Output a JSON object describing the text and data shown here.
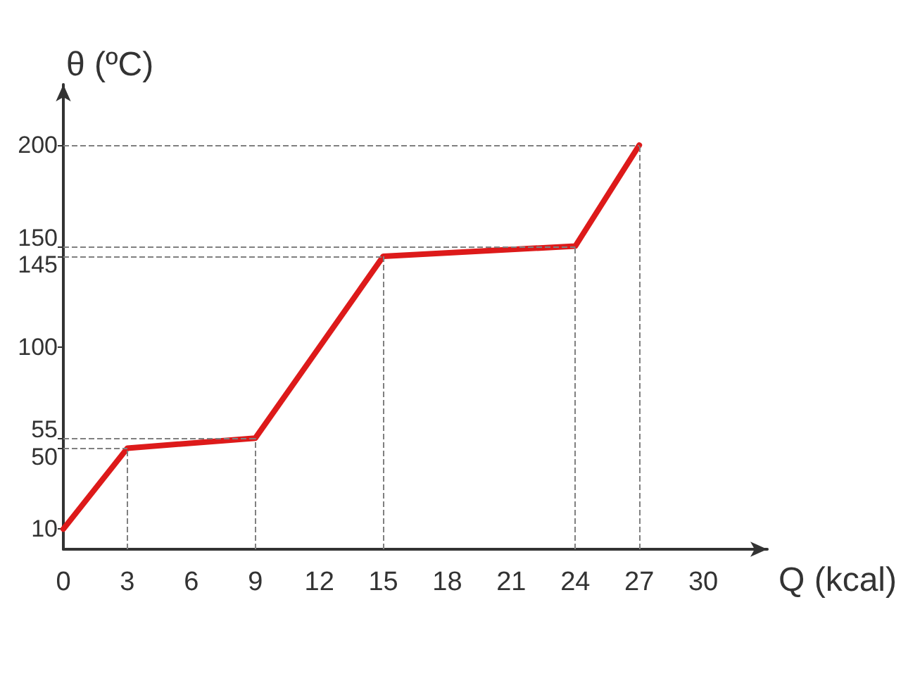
{
  "chart_data": {
    "type": "line",
    "xlabel": "Q (kcal)",
    "ylabel": "θ (ºC)",
    "x": [
      0,
      3,
      9,
      15,
      24,
      27
    ],
    "series": [
      {
        "color": "#dd1a1a",
        "values": [
          10,
          50,
          55,
          145,
          150,
          200
        ]
      }
    ],
    "xlim": [
      0,
      33
    ],
    "xticks": [
      0,
      3,
      6,
      9,
      12,
      15,
      18,
      21,
      24,
      27,
      30
    ],
    "ylim": [
      0,
      230
    ],
    "yticks": [
      10,
      50,
      55,
      100,
      145,
      150,
      200
    ],
    "marker": "none",
    "ref_lines": [
      {
        "axis": "y",
        "value": 50,
        "color": "#808080",
        "line_style": "dashed"
      },
      {
        "axis": "y",
        "value": 55,
        "color": "#808080",
        "line_style": "dashed"
      },
      {
        "axis": "y",
        "value": 145,
        "color": "#808080",
        "line_style": "dashed"
      },
      {
        "axis": "y",
        "value": 150,
        "color": "#808080",
        "line_style": "dashed"
      },
      {
        "axis": "y",
        "value": 200,
        "color": "#808080",
        "line_style": "dashed"
      },
      {
        "axis": "x",
        "value": 3,
        "color": "#808080",
        "line_style": "dashed"
      },
      {
        "axis": "x",
        "value": 9,
        "color": "#808080",
        "line_style": "dashed"
      },
      {
        "axis": "x",
        "value": 15,
        "color": "#808080",
        "line_style": "dashed"
      },
      {
        "axis": "x",
        "value": 24,
        "color": "#808080",
        "line_style": "dashed"
      },
      {
        "axis": "x",
        "value": 27,
        "color": "#808080",
        "line_style": "dashed"
      }
    ]
  }
}
